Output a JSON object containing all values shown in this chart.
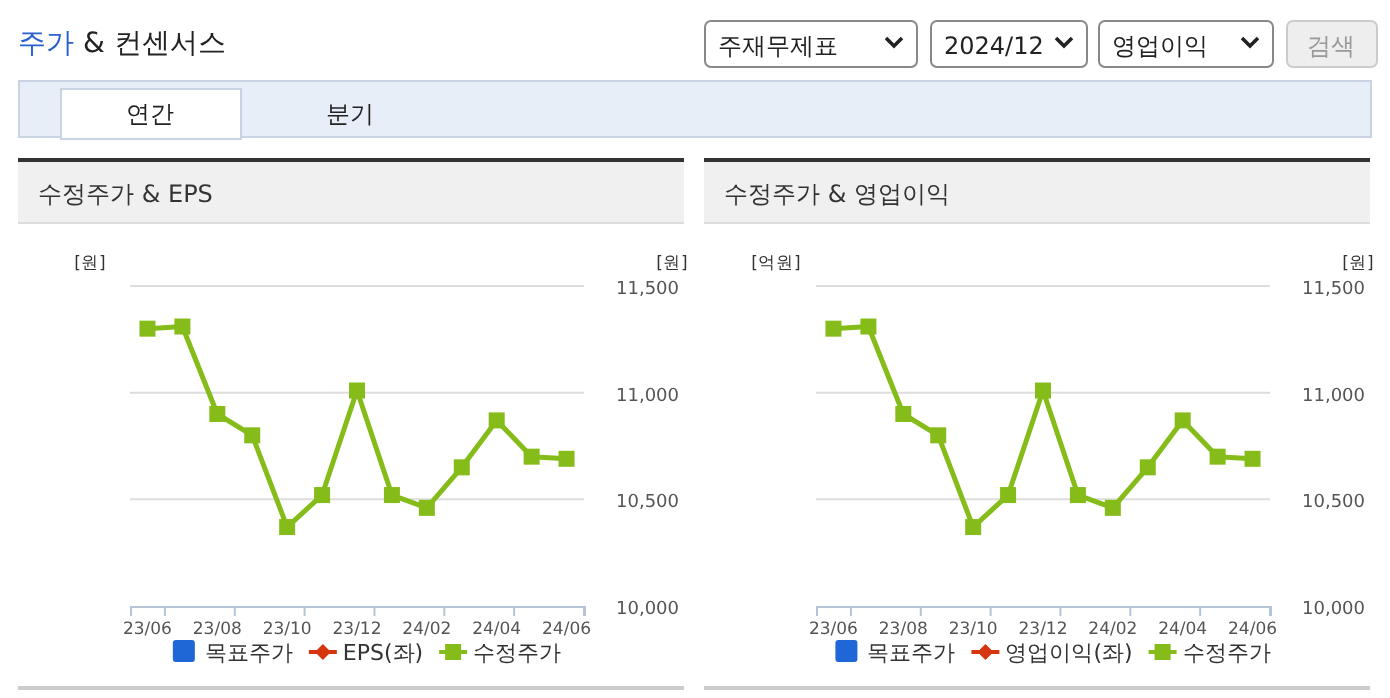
{
  "chart_data": [
    {
      "type": "other",
      "title": "주가 & 컨센서스",
      "annotations": [
        "주재무제표",
        "2024/12",
        "영업이익",
        "검색",
        "연간",
        "분기"
      ]
    },
    {
      "type": "line",
      "title": "수정주가 & EPS",
      "ylabel": "[원]",
      "y2label": "[원]",
      "categories": [
        "23/06",
        null,
        "23/08",
        null,
        "23/10",
        null,
        "23/12",
        null,
        "24/02",
        null,
        "24/04",
        null,
        "24/06"
      ],
      "series": [
        {
          "name": "목표주가",
          "type": "bar",
          "color": "#1f66d6",
          "values": [
            null,
            null,
            null,
            null,
            null,
            null,
            null,
            null,
            null,
            null,
            null,
            null,
            null
          ]
        },
        {
          "name": "EPS(좌)",
          "type": "line",
          "marker": "diamond",
          "color": "#d5350f",
          "values": [
            null,
            null,
            null,
            null,
            null,
            null,
            null,
            null,
            null,
            null,
            null,
            null,
            null
          ]
        },
        {
          "name": "수정주가",
          "type": "line",
          "axis": "y2",
          "color": "#86bc1a",
          "values": [
            11300,
            11310,
            10900,
            10800,
            10370,
            10520,
            11010,
            10520,
            10460,
            10650,
            10870,
            10700,
            10690
          ]
        }
      ],
      "y2lim": [
        10000,
        11500
      ],
      "y2ticks": [
        {
          "value": 10000,
          "label": "10,000"
        },
        {
          "value": 10500,
          "label": "10,500"
        },
        {
          "value": 11000,
          "label": "11,000"
        },
        {
          "value": 11500,
          "label": "11,500"
        }
      ],
      "grid": "y",
      "legend": "bottom",
      "marker": "square"
    },
    {
      "type": "line",
      "title": "수정주가 & 영업이익",
      "ylabel": "[억원]",
      "y2label": "[원]",
      "categories": [
        "23/06",
        null,
        "23/08",
        null,
        "23/10",
        null,
        "23/12",
        null,
        "24/02",
        null,
        "24/04",
        null,
        "24/06"
      ],
      "series": [
        {
          "name": "목표주가",
          "type": "bar",
          "color": "#1f66d6",
          "values": [
            null,
            null,
            null,
            null,
            null,
            null,
            null,
            null,
            null,
            null,
            null,
            null,
            null
          ]
        },
        {
          "name": "영업이익(좌)",
          "type": "line",
          "marker": "diamond",
          "color": "#d5350f",
          "values": [
            null,
            null,
            null,
            null,
            null,
            null,
            null,
            null,
            null,
            null,
            null,
            null,
            null
          ]
        },
        {
          "name": "수정주가",
          "type": "line",
          "axis": "y2",
          "color": "#86bc1a",
          "values": [
            11300,
            11310,
            10900,
            10800,
            10370,
            10520,
            11010,
            10520,
            10460,
            10650,
            10870,
            10700,
            10690
          ]
        }
      ],
      "y2lim": [
        10000,
        11500
      ],
      "y2ticks": [
        {
          "value": 10000,
          "label": "10,000"
        },
        {
          "value": 10500,
          "label": "10,500"
        },
        {
          "value": 11000,
          "label": "11,000"
        },
        {
          "value": 11500,
          "label": "11,500"
        }
      ],
      "grid": "y",
      "legend": "bottom",
      "marker": "square"
    }
  ]
}
